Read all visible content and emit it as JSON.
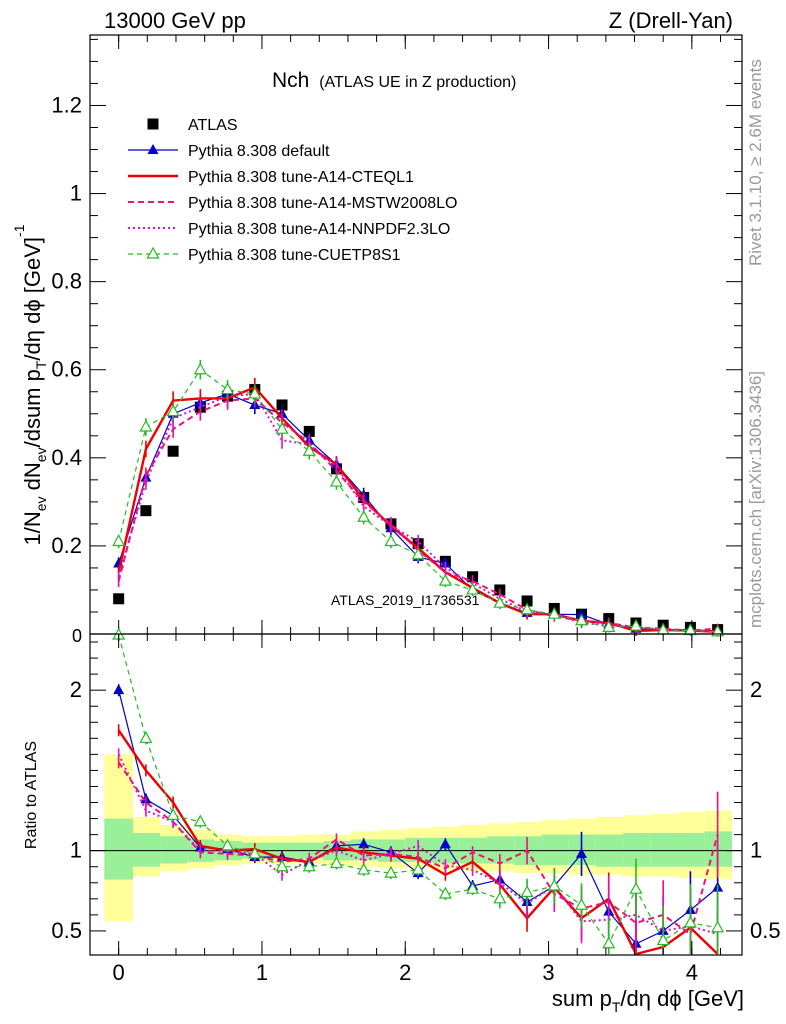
{
  "header": {
    "left": "13000 GeV pp",
    "right": "Z (Drell-Yan)"
  },
  "plot_title": {
    "main": "Nch",
    "sub": "(ATLAS UE in Z production)"
  },
  "side_labels": {
    "rivet": "Rivet 3.1.10, ≥ 2.6M events",
    "mcplots": "mcplots.cern.ch [arXiv:1306.3436]"
  },
  "watermark": "ATLAS_2019_I1736531",
  "legend": [
    {
      "label": "ATLAS",
      "color": "#000000",
      "style": "marker"
    },
    {
      "label": "Pythia 8.308 default",
      "color": "#0000cc",
      "style": "solid-triangle"
    },
    {
      "label": "Pythia 8.308 tune-A14-CTEQL1",
      "color": "#ee0000",
      "style": "solid-thick"
    },
    {
      "label": "Pythia 8.308 tune-A14-MSTW2008LO",
      "color": "#ee1177",
      "style": "dashed"
    },
    {
      "label": "Pythia 8.308 tune-A14-NNPDF2.3LO",
      "color": "#dd11cc",
      "style": "dotted"
    },
    {
      "label": "Pythia 8.308 tune-CUETP8S1",
      "color": "#22bb22",
      "style": "dashed-open-triangle"
    }
  ],
  "chart_data": [
    {
      "type": "line",
      "panel": "main",
      "ylabel_parts": [
        "1/N",
        "ev",
        " dN",
        "ev",
        "/dsum p",
        "T",
        "/dη dϕ  [GeV]",
        "-1"
      ],
      "xlim": [
        -0.2,
        4.35
      ],
      "ylim": [
        0,
        1.36
      ],
      "y_ticks": [
        0.2,
        0.4,
        0.6,
        0.8,
        1,
        1.2
      ],
      "y_tick_labels": [
        "0.2",
        "0.4",
        "0.6",
        "0.8",
        "1",
        "1.2"
      ],
      "y_bottom_label": "0",
      "x": [
        0.0,
        0.19,
        0.38,
        0.57,
        0.76,
        0.95,
        1.14,
        1.33,
        1.52,
        1.71,
        1.9,
        2.09,
        2.28,
        2.47,
        2.66,
        2.85,
        3.04,
        3.23,
        3.42,
        3.61,
        3.8,
        3.99,
        4.18
      ],
      "series": [
        {
          "name": "ATLAS",
          "values": [
            0.08,
            0.28,
            0.415,
            0.515,
            0.54,
            0.555,
            0.52,
            0.46,
            0.375,
            0.31,
            0.25,
            0.205,
            0.165,
            0.13,
            0.1,
            0.075,
            0.058,
            0.045,
            0.035,
            0.025,
            0.02,
            0.015,
            0.01
          ]
        },
        {
          "name": "Pythia 8.308 default",
          "values": [
            0.16,
            0.355,
            0.5,
            0.525,
            0.545,
            0.52,
            0.5,
            0.44,
            0.385,
            0.315,
            0.24,
            0.175,
            0.16,
            0.1,
            0.07,
            0.048,
            0.045,
            0.044,
            0.022,
            0.012,
            0.01,
            0.009,
            0.007
          ]
        },
        {
          "name": "Pythia 8.308 tune-A14-CTEQL1",
          "values": [
            0.14,
            0.42,
            0.53,
            0.535,
            0.535,
            0.56,
            0.49,
            0.425,
            0.385,
            0.305,
            0.245,
            0.195,
            0.14,
            0.105,
            0.07,
            0.045,
            0.045,
            0.03,
            0.025,
            0.007,
            0.009,
            0.008,
            0.005
          ]
        },
        {
          "name": "Pythia 8.308 tune-A14-MSTW2008LO",
          "values": [
            0.12,
            0.36,
            0.465,
            0.505,
            0.53,
            0.535,
            0.48,
            0.435,
            0.37,
            0.3,
            0.25,
            0.19,
            0.14,
            0.12,
            0.09,
            0.055,
            0.04,
            0.03,
            0.025,
            0.015,
            0.012,
            0.008,
            0.012
          ]
        },
        {
          "name": "Pythia 8.308 tune-A14-NNPDF2.3LO",
          "values": [
            0.13,
            0.345,
            0.49,
            0.515,
            0.54,
            0.545,
            0.44,
            0.43,
            0.38,
            0.29,
            0.245,
            0.21,
            0.15,
            0.115,
            0.08,
            0.05,
            0.045,
            0.025,
            0.02,
            0.015,
            0.01,
            0.008,
            0.006
          ]
        },
        {
          "name": "Pythia 8.308 tune-CUETP8S1",
          "values": [
            0.21,
            0.47,
            0.505,
            0.6,
            0.555,
            0.545,
            0.465,
            0.415,
            0.345,
            0.265,
            0.21,
            0.18,
            0.12,
            0.1,
            0.07,
            0.055,
            0.045,
            0.03,
            0.015,
            0.018,
            0.009,
            0.008,
            0.005
          ]
        }
      ]
    },
    {
      "type": "line",
      "panel": "ratio",
      "ylabel": "Ratio to ATLAS",
      "xlabel_parts": [
        "sum p",
        "T",
        "/dη dϕ [GeV]"
      ],
      "xlim": [
        -0.2,
        4.35
      ],
      "ylim": [
        0.35,
        2.35
      ],
      "x_ticks": [
        0,
        1,
        2,
        3,
        4
      ],
      "x_tick_labels": [
        "0",
        "1",
        "2",
        "3",
        "4"
      ],
      "y_ticks": [
        0.5,
        1,
        2
      ],
      "y_tick_labels": [
        "0.5",
        "1",
        "2"
      ],
      "reference_line": 1,
      "bands": {
        "bin_edges": [
          -0.1,
          0.1,
          0.29,
          0.48,
          0.67,
          0.86,
          1.05,
          1.24,
          1.43,
          1.62,
          1.81,
          2.0,
          2.19,
          2.38,
          2.57,
          2.76,
          2.95,
          3.14,
          3.33,
          3.52,
          3.71,
          3.9,
          4.09,
          4.28
        ],
        "green": [
          [
            0.82,
            1.2
          ],
          [
            0.9,
            1.11
          ],
          [
            0.92,
            1.09
          ],
          [
            0.93,
            1.07
          ],
          [
            0.94,
            1.06
          ],
          [
            0.95,
            1.05
          ],
          [
            0.95,
            1.05
          ],
          [
            0.95,
            1.05
          ],
          [
            0.94,
            1.06
          ],
          [
            0.94,
            1.07
          ],
          [
            0.93,
            1.07
          ],
          [
            0.93,
            1.08
          ],
          [
            0.92,
            1.08
          ],
          [
            0.92,
            1.08
          ],
          [
            0.92,
            1.09
          ],
          [
            0.91,
            1.09
          ],
          [
            0.91,
            1.1
          ],
          [
            0.91,
            1.1
          ],
          [
            0.9,
            1.1
          ],
          [
            0.9,
            1.11
          ],
          [
            0.9,
            1.11
          ],
          [
            0.9,
            1.11
          ],
          [
            0.9,
            1.12
          ]
        ],
        "yellow": [
          [
            0.56,
            1.6
          ],
          [
            0.84,
            1.21
          ],
          [
            0.87,
            1.16
          ],
          [
            0.89,
            1.13
          ],
          [
            0.91,
            1.1
          ],
          [
            0.92,
            1.09
          ],
          [
            0.92,
            1.09
          ],
          [
            0.92,
            1.1
          ],
          [
            0.91,
            1.1
          ],
          [
            0.9,
            1.12
          ],
          [
            0.89,
            1.13
          ],
          [
            0.89,
            1.14
          ],
          [
            0.88,
            1.15
          ],
          [
            0.87,
            1.16
          ],
          [
            0.87,
            1.17
          ],
          [
            0.86,
            1.18
          ],
          [
            0.86,
            1.19
          ],
          [
            0.85,
            1.2
          ],
          [
            0.85,
            1.21
          ],
          [
            0.84,
            1.22
          ],
          [
            0.84,
            1.23
          ],
          [
            0.83,
            1.24
          ],
          [
            0.82,
            1.25
          ]
        ]
      },
      "x": [
        0.0,
        0.19,
        0.38,
        0.57,
        0.76,
        0.95,
        1.14,
        1.33,
        1.52,
        1.71,
        1.9,
        2.09,
        2.28,
        2.47,
        2.66,
        2.85,
        3.04,
        3.23,
        3.42,
        3.61,
        3.8,
        3.99,
        4.18
      ],
      "series": [
        {
          "name": "Pythia 8.308 default",
          "values": [
            2.0,
            1.32,
            1.22,
            1.02,
            1.01,
            0.96,
            0.96,
            0.93,
            1.03,
            1.04,
            0.99,
            0.86,
            1.04,
            0.78,
            0.82,
            0.68,
            0.78,
            0.98,
            0.62,
            0.42,
            0.5,
            0.63,
            0.77
          ]
        },
        {
          "name": "Pythia 8.308 tune-A14-CTEQL1",
          "values": [
            1.75,
            1.5,
            1.3,
            1.03,
            1.0,
            1.01,
            0.95,
            0.93,
            1.02,
            0.99,
            0.97,
            0.95,
            0.85,
            0.93,
            0.79,
            0.58,
            0.77,
            0.58,
            0.7,
            0.28,
            0.4,
            0.52,
            0.3
          ]
        },
        {
          "name": "Pythia 8.308 tune-A14-MSTW2008LO",
          "values": [
            1.55,
            1.3,
            1.18,
            0.99,
            0.98,
            0.97,
            0.93,
            0.95,
            1.07,
            0.97,
            0.98,
            0.96,
            0.89,
            0.99,
            0.92,
            1.0,
            0.73,
            0.64,
            0.68,
            0.55,
            0.6,
            0.48,
            1.1
          ]
        },
        {
          "name": "Pythia 8.308 tune-A14-NNPDF2.3LO",
          "values": [
            1.6,
            1.25,
            1.18,
            1.0,
            1.0,
            0.98,
            0.85,
            0.94,
            1.0,
            0.94,
            0.98,
            1.03,
            0.91,
            0.88,
            0.8,
            0.67,
            0.78,
            0.56,
            0.57,
            0.6,
            0.5,
            0.53,
            0.48
          ]
        },
        {
          "name": "Pythia 8.308 tune-CUETP8S1",
          "values": [
            2.35,
            1.7,
            1.22,
            1.18,
            1.03,
            0.98,
            0.9,
            0.9,
            0.92,
            0.88,
            0.86,
            0.88,
            0.73,
            0.76,
            0.7,
            0.74,
            0.78,
            0.66,
            0.42,
            0.76,
            0.44,
            0.55,
            0.52
          ]
        }
      ]
    }
  ]
}
